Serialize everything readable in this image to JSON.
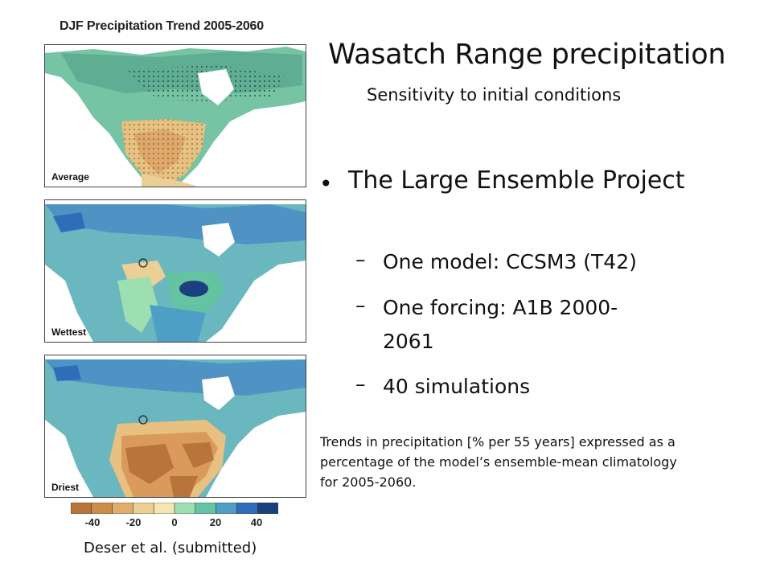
{
  "figure": {
    "title": "DJF Precipitation Trend 2005-2060",
    "panels": [
      {
        "label": "Average"
      },
      {
        "label": "Wettest"
      },
      {
        "label": "Driest"
      }
    ],
    "colorbar": {
      "ticks": [
        "-40",
        "-20",
        "0",
        "20",
        "40"
      ],
      "colors": [
        "#b8743a",
        "#cc8d4b",
        "#dfae6b",
        "#eccf95",
        "#f5e6b3",
        "#9ddfb0",
        "#64c3a0",
        "#4e9fc5",
        "#2f6db8",
        "#1c3f80"
      ]
    },
    "credit": "Deser et al. (submitted)"
  },
  "slide": {
    "title": "Wasatch Range precipitation",
    "subtitle": "Sensitivity to initial conditions",
    "bullet": "The Large Ensemble Project",
    "sub_items": [
      "One model: CCSM3 (T42)",
      "One forcing: A1B 2000-2061",
      "40 simulations"
    ],
    "caption": "Trends in precipitation [% per 55 years] expressed as a percentage of the model’s ensemble-mean climatology for 2005-2060."
  }
}
